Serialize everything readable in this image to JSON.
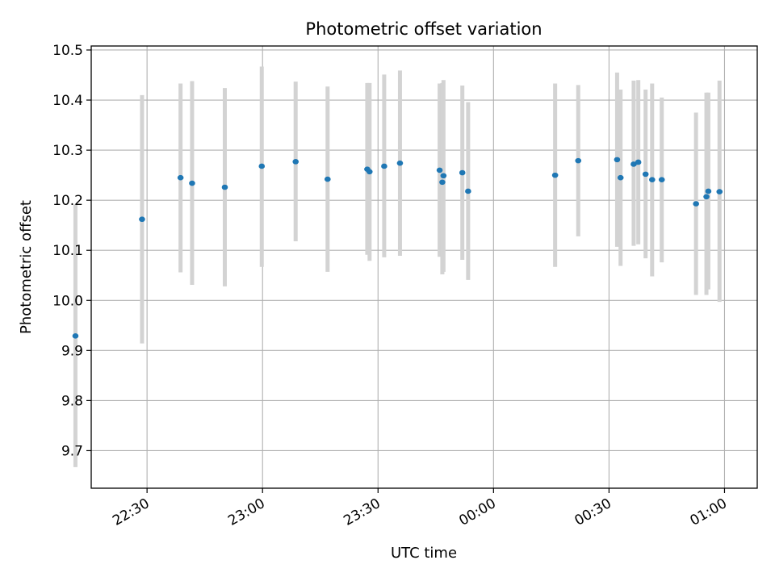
{
  "chart_data": {
    "type": "scatter",
    "title": "Photometric offset variation",
    "xlabel": "UTC time",
    "ylabel": "Photometric offset",
    "xlim_minutes": [
      -104.5,
      68.5
    ],
    "ylim": [
      9.625,
      10.508
    ],
    "grid": true,
    "x_ticks": [
      {
        "value": -90,
        "label": "22:30"
      },
      {
        "value": -60,
        "label": "23:00"
      },
      {
        "value": -30,
        "label": "23:30"
      },
      {
        "value": 0,
        "label": "00:00"
      },
      {
        "value": 30,
        "label": "00:30"
      },
      {
        "value": 60,
        "label": "01:00"
      }
    ],
    "y_ticks": [
      {
        "value": 9.7,
        "label": "9.7"
      },
      {
        "value": 9.8,
        "label": "9.8"
      },
      {
        "value": 9.9,
        "label": "9.9"
      },
      {
        "value": 10.0,
        "label": "10.0"
      },
      {
        "value": 10.1,
        "label": "10.1"
      },
      {
        "value": 10.2,
        "label": "10.2"
      },
      {
        "value": 10.3,
        "label": "10.3"
      },
      {
        "value": 10.4,
        "label": "10.4"
      },
      {
        "value": 10.5,
        "label": "10.5"
      }
    ],
    "colors": {
      "point": "#1f77b4",
      "errorbar": "#d3d3d3",
      "grid": "#b0b0b0"
    },
    "x_unit_note": "minutes relative to 00:00 UTC",
    "points": [
      {
        "x": -108.6,
        "y": 9.929,
        "lo": 9.667,
        "hi": 10.192
      },
      {
        "x": -91.3,
        "y": 10.162,
        "lo": 9.914,
        "hi": 10.41
      },
      {
        "x": -81.3,
        "y": 10.245,
        "lo": 10.056,
        "hi": 10.433
      },
      {
        "x": -78.3,
        "y": 10.234,
        "lo": 10.031,
        "hi": 10.438
      },
      {
        "x": -69.8,
        "y": 10.226,
        "lo": 10.028,
        "hi": 10.424
      },
      {
        "x": -60.2,
        "y": 10.268,
        "lo": 10.067,
        "hi": 10.467
      },
      {
        "x": -51.4,
        "y": 10.277,
        "lo": 10.118,
        "hi": 10.437
      },
      {
        "x": -43.1,
        "y": 10.242,
        "lo": 10.057,
        "hi": 10.427
      },
      {
        "x": -32.8,
        "y": 10.262,
        "lo": 10.091,
        "hi": 10.434
      },
      {
        "x": -32.2,
        "y": 10.257,
        "lo": 10.079,
        "hi": 10.434
      },
      {
        "x": -28.4,
        "y": 10.268,
        "lo": 10.086,
        "hi": 10.451
      },
      {
        "x": -24.3,
        "y": 10.274,
        "lo": 10.089,
        "hi": 10.459
      },
      {
        "x": -14.0,
        "y": 10.26,
        "lo": 10.087,
        "hi": 10.433
      },
      {
        "x": -13.3,
        "y": 10.236,
        "lo": 10.052,
        "hi": 10.434
      },
      {
        "x": -13.0,
        "y": 10.249,
        "lo": 10.057,
        "hi": 10.44
      },
      {
        "x": -8.1,
        "y": 10.255,
        "lo": 10.081,
        "hi": 10.429
      },
      {
        "x": -6.6,
        "y": 10.218,
        "lo": 10.041,
        "hi": 10.396
      },
      {
        "x": 16.0,
        "y": 10.25,
        "lo": 10.067,
        "hi": 10.433
      },
      {
        "x": 22.0,
        "y": 10.279,
        "lo": 10.128,
        "hi": 10.43
      },
      {
        "x": 32.1,
        "y": 10.281,
        "lo": 10.107,
        "hi": 10.455
      },
      {
        "x": 33.0,
        "y": 10.245,
        "lo": 10.069,
        "hi": 10.421
      },
      {
        "x": 36.4,
        "y": 10.272,
        "lo": 10.109,
        "hi": 10.439
      },
      {
        "x": 37.6,
        "y": 10.276,
        "lo": 10.112,
        "hi": 10.44
      },
      {
        "x": 39.5,
        "y": 10.252,
        "lo": 10.084,
        "hi": 10.421
      },
      {
        "x": 41.2,
        "y": 10.241,
        "lo": 10.048,
        "hi": 10.433
      },
      {
        "x": 43.7,
        "y": 10.241,
        "lo": 10.076,
        "hi": 10.405
      },
      {
        "x": 52.6,
        "y": 10.193,
        "lo": 10.011,
        "hi": 10.375
      },
      {
        "x": 55.3,
        "y": 10.207,
        "lo": 10.011,
        "hi": 10.415
      },
      {
        "x": 55.8,
        "y": 10.218,
        "lo": 10.022,
        "hi": 10.415
      },
      {
        "x": 58.7,
        "y": 10.217,
        "lo": 9.997,
        "hi": 10.439
      }
    ]
  }
}
